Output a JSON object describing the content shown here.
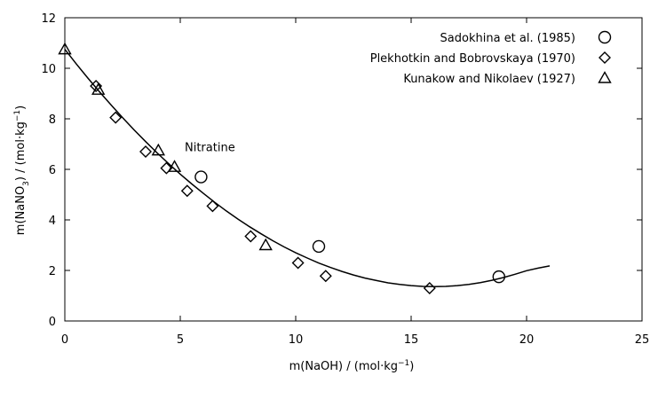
{
  "chart_data": {
    "type": "scatter",
    "xlabel_parts": [
      "m(NaOH) / (mol·kg",
      "−1",
      ")"
    ],
    "ylabel_parts": [
      "m(NaNO",
      "3",
      ") / (mol·kg",
      "−1",
      ")"
    ],
    "xlim": [
      0,
      25
    ],
    "ylim": [
      0,
      12
    ],
    "x_ticks": [
      0,
      5,
      10,
      15,
      20,
      25
    ],
    "y_ticks": [
      0,
      2,
      4,
      6,
      8,
      10,
      12
    ],
    "grid": false,
    "legend_position": "top-right",
    "annotation": {
      "text": "Nitratine",
      "x": 5.0,
      "y": 6.9
    },
    "series": [
      {
        "name": "Sadokhina et al. (1985)",
        "marker": "circle",
        "points": [
          [
            5.9,
            5.7
          ],
          [
            11.0,
            2.95
          ],
          [
            18.8,
            1.75
          ]
        ]
      },
      {
        "name": "Plekhotkin and Bobrovskaya (1970)",
        "marker": "diamond",
        "points": [
          [
            1.35,
            9.3
          ],
          [
            2.2,
            8.05
          ],
          [
            3.5,
            6.7
          ],
          [
            4.4,
            6.05
          ],
          [
            5.3,
            5.15
          ],
          [
            6.4,
            4.55
          ],
          [
            8.05,
            3.35
          ],
          [
            10.1,
            2.3
          ],
          [
            11.3,
            1.78
          ],
          [
            15.8,
            1.3
          ]
        ]
      },
      {
        "name": "Kunakow and Nikolaev (1927)",
        "marker": "triangle",
        "points": [
          [
            0.0,
            10.75
          ],
          [
            1.45,
            9.15
          ],
          [
            4.05,
            6.75
          ],
          [
            4.75,
            6.1
          ],
          [
            8.7,
            3.0
          ]
        ]
      },
      {
        "name": "",
        "marker": "line",
        "points": [
          [
            0.0,
            10.75
          ],
          [
            0.5,
            10.17
          ],
          [
            1.0,
            9.61
          ],
          [
            1.5,
            9.07
          ],
          [
            2.0,
            8.55
          ],
          [
            2.5,
            8.05
          ],
          [
            3.0,
            7.56
          ],
          [
            3.5,
            7.1
          ],
          [
            4.0,
            6.65
          ],
          [
            4.5,
            6.22
          ],
          [
            5.0,
            5.81
          ],
          [
            5.5,
            5.42
          ],
          [
            6.0,
            5.05
          ],
          [
            6.5,
            4.69
          ],
          [
            7.0,
            4.35
          ],
          [
            7.5,
            4.03
          ],
          [
            8.0,
            3.73
          ],
          [
            8.5,
            3.45
          ],
          [
            9.0,
            3.18
          ],
          [
            9.5,
            2.93
          ],
          [
            10.0,
            2.7
          ],
          [
            10.5,
            2.49
          ],
          [
            11.0,
            2.29
          ],
          [
            11.5,
            2.12
          ],
          [
            12.0,
            1.96
          ],
          [
            12.5,
            1.82
          ],
          [
            13.0,
            1.7
          ],
          [
            13.5,
            1.6
          ],
          [
            14.0,
            1.51
          ],
          [
            14.5,
            1.45
          ],
          [
            15.0,
            1.4
          ],
          [
            15.5,
            1.37
          ],
          [
            16.0,
            1.36
          ],
          [
            16.5,
            1.37
          ],
          [
            17.0,
            1.4
          ],
          [
            17.5,
            1.45
          ],
          [
            18.0,
            1.52
          ],
          [
            18.5,
            1.61
          ],
          [
            19.0,
            1.72
          ],
          [
            19.5,
            1.85
          ],
          [
            20.0,
            1.99
          ],
          [
            20.5,
            2.09
          ],
          [
            21.0,
            2.18
          ]
        ]
      }
    ]
  }
}
